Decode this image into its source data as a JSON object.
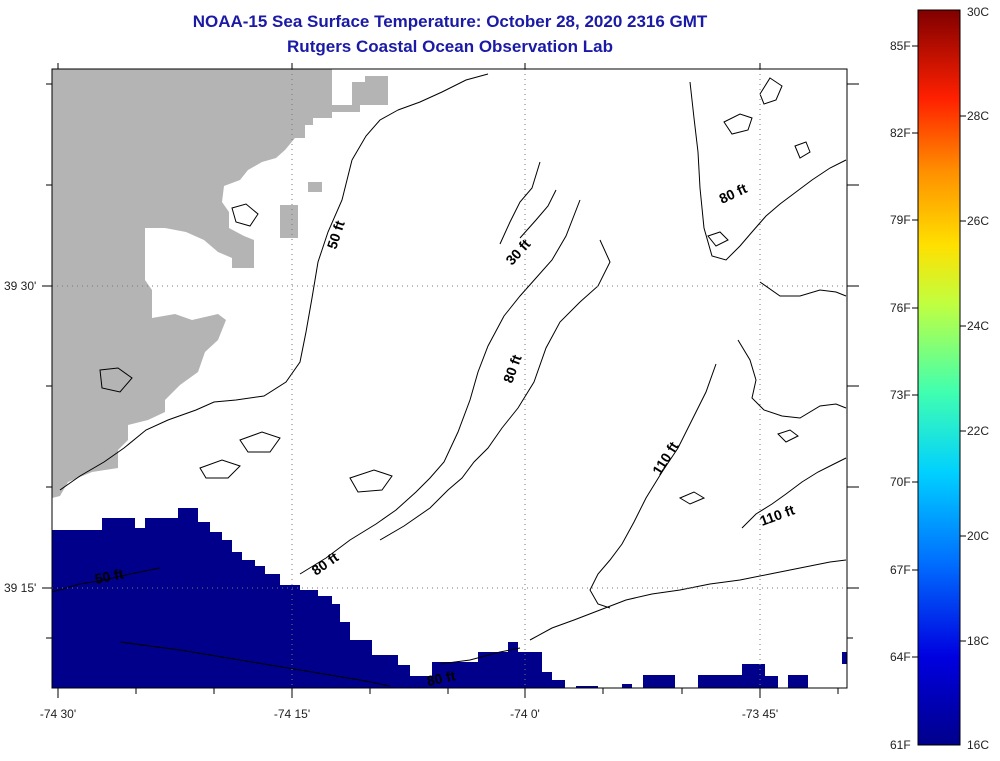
{
  "title_line1": "NOAA-15 Sea Surface Temperature:  October 28, 2020 2316 GMT",
  "title_line2": "Rutgers Coastal Ocean Observation Lab",
  "colors": {
    "land": "#b4b4b4",
    "cold_water": "#00008b",
    "contour": "#000000",
    "title": "#1a1aa6"
  },
  "axes": {
    "lon_labels": [
      "-74 30'",
      "-74 15'",
      "-74 0'",
      "-73 45'"
    ],
    "lat_labels": [
      "39 30'",
      "39 15'"
    ]
  },
  "contour_labels": [
    "50 ft",
    "30 ft",
    "80 ft",
    "80 ft",
    "110 ft",
    "110 ft",
    "50 ft",
    "80 ft",
    "80 ft"
  ],
  "colorbar": {
    "fahrenheit": [
      "85F",
      "82F",
      "79F",
      "76F",
      "73F",
      "70F",
      "67F",
      "64F",
      "61F"
    ],
    "celsius": [
      "30C",
      "28C",
      "26C",
      "24C",
      "22C",
      "20C",
      "18C",
      "16C"
    ]
  }
}
